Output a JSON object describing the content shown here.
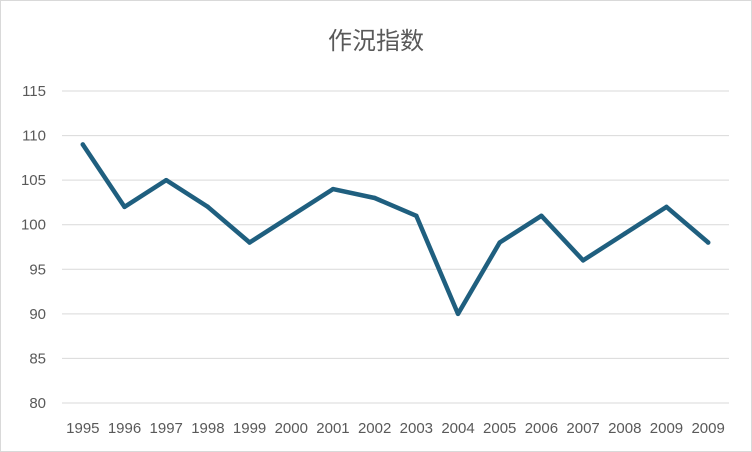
{
  "chart_data": {
    "type": "line",
    "title": "作況指数",
    "xlabel": "",
    "ylabel": "",
    "categories": [
      "1995",
      "1996",
      "1997",
      "1998",
      "1999",
      "2000",
      "2001",
      "2002",
      "2003",
      "2004",
      "2005",
      "2006",
      "2007",
      "2008",
      "2009",
      "2009"
    ],
    "series": [
      {
        "values": [
          109,
          102,
          105,
          102,
          98,
          101,
          104,
          103,
          101,
          90,
          98,
          101,
          96,
          99,
          102,
          98
        ]
      }
    ],
    "ylim": [
      80,
      115
    ],
    "yticks": [
      80,
      85,
      90,
      95,
      100,
      105,
      110,
      115
    ],
    "grid": true,
    "line_color": "#1f5f7f",
    "grid_color": "#d9d9d9"
  }
}
